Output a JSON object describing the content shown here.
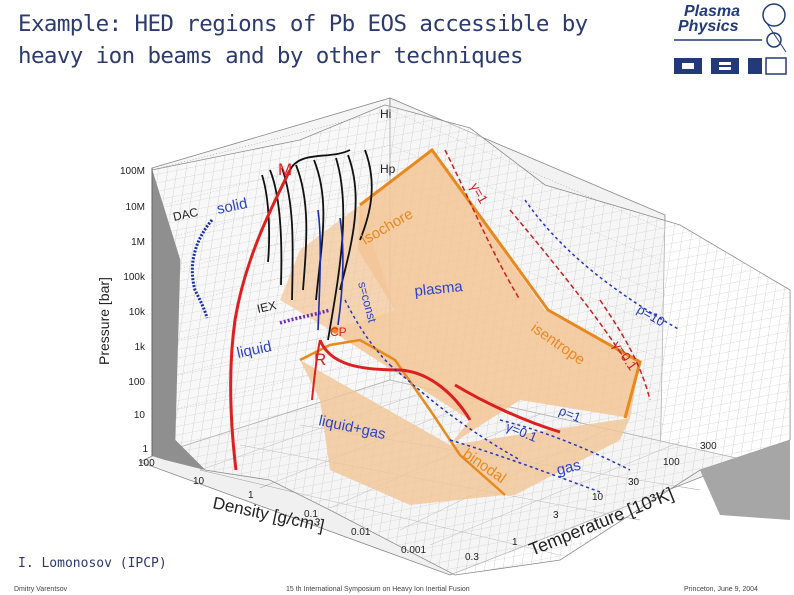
{
  "slide": {
    "title_line1": "Example: HED regions of Pb EOS accessible by",
    "title_line2": "heavy ion beams and by other techniques",
    "author": "I. Lomonosov (IPCP)"
  },
  "logo": {
    "line1": "Plasma",
    "line2": "Physics"
  },
  "footer": {
    "left": "Dmitry Varentsov",
    "center": "15 th International Symposium on Heavy Ion Inertial Fusion",
    "right": "Princeton, June 9, 2004"
  },
  "diagram": {
    "pressure_axis_label": "Pressure [bar]",
    "pressure_ticks": [
      "100M",
      "10M",
      "1M",
      "100k",
      "10k",
      "1k",
      "100",
      "10",
      "1"
    ],
    "density_axis_label": "Density [g/cm³]",
    "density_ticks": [
      "100",
      "10",
      "1",
      "0.1",
      "0.01",
      "0.001"
    ],
    "temperature_axis_label": "Temperature [10³K]",
    "temperature_ticks": [
      "0.3",
      "1",
      "3",
      "10",
      "30",
      "100",
      "300"
    ],
    "regions": {
      "solid": "solid",
      "liquid": "liquid",
      "plasma": "plasma",
      "liquid_gas": "liquid+gas",
      "gas": "gas"
    },
    "labels": {
      "M": "M",
      "R": "R",
      "CP": "CP",
      "DAC": "DAC",
      "IEX": "IEX",
      "Hi": "Hi",
      "Hp": "Hp",
      "isochore": "isochore",
      "isentrope": "isentrope",
      "s_const": "s=const",
      "binodal": "binodal",
      "gamma_1": "γ=1",
      "gamma_01": "γ=0.1",
      "rho_10": "ρ=10",
      "rho_1": "ρ=1",
      "gamma_01_low": "γ=0.1"
    },
    "colors": {
      "shock_M": "#dd1f1f",
      "release_R": "#dd1f1f",
      "isochore": "#e8891f",
      "orange_region": "#f3c596",
      "dashed_blue": "#2438b8",
      "dashed_red": "#cc2020",
      "dac": "#1a2ea8",
      "iex": "#6a2fc0",
      "black_isentropes": "#111111",
      "label_blue": "#2d44c8"
    }
  }
}
